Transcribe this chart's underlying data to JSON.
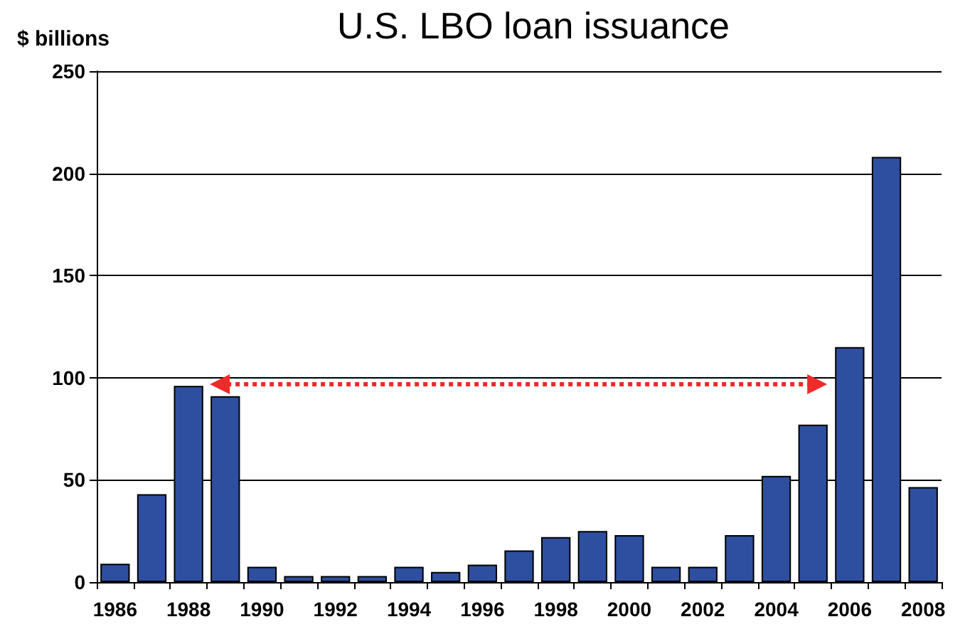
{
  "chart_data": {
    "type": "bar",
    "title": "U.S. LBO loan issuance",
    "ylabel": "$ billions",
    "categories": [
      "1986",
      null,
      "1988",
      null,
      "1990",
      null,
      "1992",
      null,
      "1994",
      null,
      "1996",
      null,
      "1998",
      null,
      "2000",
      null,
      "2002",
      null,
      "2004",
      null,
      "2006",
      null,
      "2008"
    ],
    "values": [
      9,
      43,
      96,
      91,
      7.5,
      3,
      3,
      3,
      7.5,
      5,
      8.5,
      15.5,
      22,
      25,
      23,
      7.5,
      7.5,
      23,
      52,
      77,
      115,
      208,
      46.5
    ],
    "color": "#2e4fa0",
    "ylim": [
      0,
      250
    ],
    "yticks": [
      0,
      50,
      100,
      150,
      200,
      250
    ],
    "grid": "y"
  }
}
